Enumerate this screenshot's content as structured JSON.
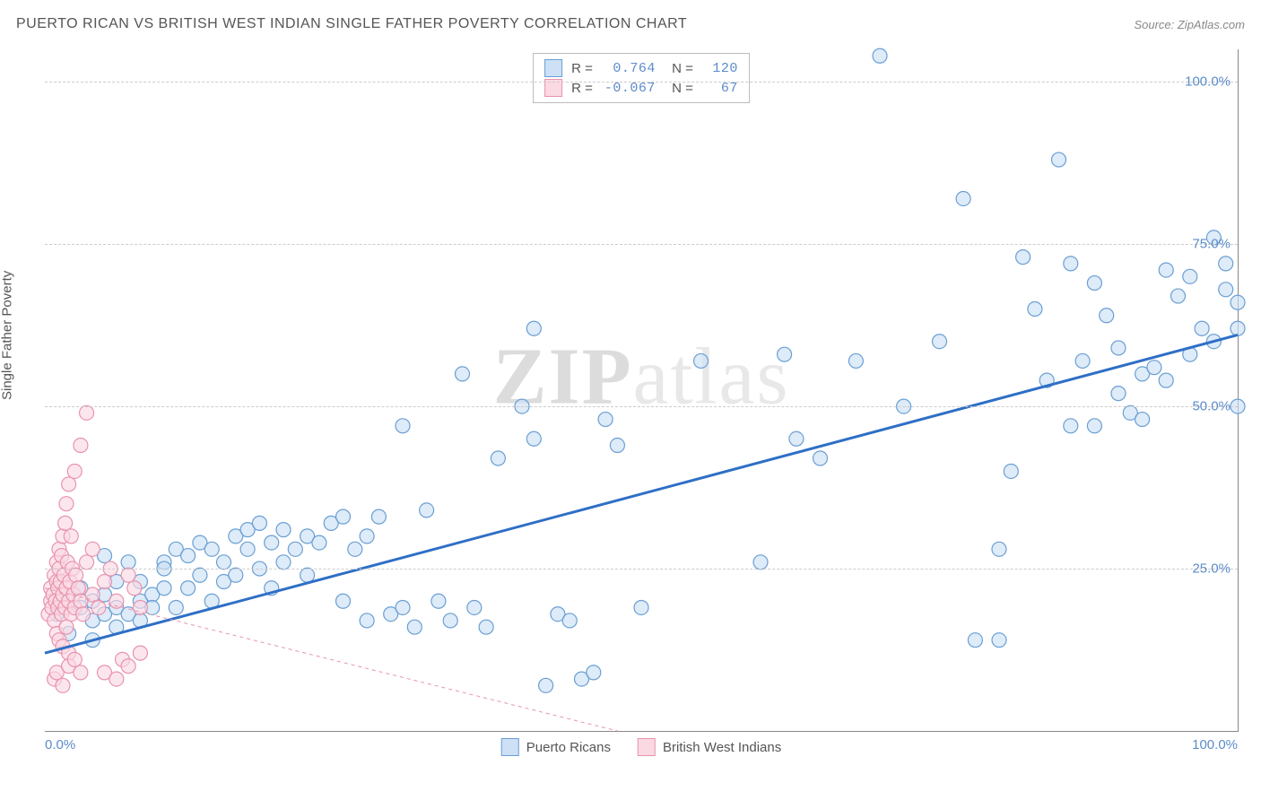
{
  "header": {
    "title": "PUERTO RICAN VS BRITISH WEST INDIAN SINGLE FATHER POVERTY CORRELATION CHART",
    "source_prefix": "Source: ",
    "source": "ZipAtlas.com"
  },
  "watermark": {
    "zip": "ZIP",
    "atlas": "atlas"
  },
  "chart": {
    "type": "scatter",
    "ylabel": "Single Father Poverty",
    "xlim": [
      0,
      100
    ],
    "ylim": [
      0,
      105
    ],
    "xtick_labels": {
      "0": "0.0%",
      "100": "100.0%"
    },
    "ytick_grid": [
      25,
      50,
      75,
      100
    ],
    "ytick_labels": {
      "25": "25.0%",
      "50": "50.0%",
      "75": "75.0%",
      "100": "100.0%"
    },
    "background_color": "#ffffff",
    "grid_color": "#cccccc",
    "axis_color": "#888888",
    "label_color": "#5b8bc9",
    "marker_radius": 8,
    "marker_stroke_width": 1.2,
    "series": [
      {
        "name": "Puerto Ricans",
        "fill": "#cde0f5",
        "stroke": "#6a9fd4",
        "fill_opacity": 0.65,
        "r_label": "R =",
        "r_value": "0.764",
        "n_label": "N =",
        "n_value": "120",
        "trend": {
          "x1": 0,
          "y1": 12,
          "x2": 100,
          "y2": 61,
          "stroke": "#2e6fc6",
          "width": 3,
          "dash": "none"
        },
        "points": [
          [
            1,
            18
          ],
          [
            2,
            20
          ],
          [
            2,
            15
          ],
          [
            3,
            19
          ],
          [
            3,
            22
          ],
          [
            4,
            17
          ],
          [
            4,
            20
          ],
          [
            4,
            14
          ],
          [
            5,
            18
          ],
          [
            5,
            21
          ],
          [
            5,
            27
          ],
          [
            6,
            16
          ],
          [
            6,
            19
          ],
          [
            6,
            23
          ],
          [
            7,
            18
          ],
          [
            7,
            26
          ],
          [
            8,
            20
          ],
          [
            8,
            17
          ],
          [
            8,
            23
          ],
          [
            9,
            21
          ],
          [
            9,
            19
          ],
          [
            10,
            22
          ],
          [
            10,
            26
          ],
          [
            10,
            25
          ],
          [
            11,
            19
          ],
          [
            11,
            28
          ],
          [
            12,
            22
          ],
          [
            12,
            27
          ],
          [
            13,
            24
          ],
          [
            13,
            29
          ],
          [
            14,
            20
          ],
          [
            14,
            28
          ],
          [
            15,
            23
          ],
          [
            15,
            26
          ],
          [
            16,
            30
          ],
          [
            16,
            24
          ],
          [
            17,
            28
          ],
          [
            17,
            31
          ],
          [
            18,
            25
          ],
          [
            18,
            32
          ],
          [
            19,
            22
          ],
          [
            19,
            29
          ],
          [
            20,
            26
          ],
          [
            20,
            31
          ],
          [
            21,
            28
          ],
          [
            22,
            24
          ],
          [
            22,
            30
          ],
          [
            23,
            29
          ],
          [
            24,
            32
          ],
          [
            25,
            20
          ],
          [
            25,
            33
          ],
          [
            26,
            28
          ],
          [
            27,
            17
          ],
          [
            27,
            30
          ],
          [
            28,
            33
          ],
          [
            29,
            18
          ],
          [
            30,
            19
          ],
          [
            30,
            47
          ],
          [
            31,
            16
          ],
          [
            32,
            34
          ],
          [
            33,
            20
          ],
          [
            34,
            17
          ],
          [
            35,
            55
          ],
          [
            36,
            19
          ],
          [
            37,
            16
          ],
          [
            38,
            42
          ],
          [
            40,
            50
          ],
          [
            41,
            45
          ],
          [
            41,
            62
          ],
          [
            42,
            7
          ],
          [
            43,
            18
          ],
          [
            44,
            17
          ],
          [
            45,
            8
          ],
          [
            46,
            9
          ],
          [
            47,
            48
          ],
          [
            48,
            44
          ],
          [
            50,
            19
          ],
          [
            55,
            57
          ],
          [
            60,
            26
          ],
          [
            62,
            58
          ],
          [
            65,
            42
          ],
          [
            68,
            57
          ],
          [
            70,
            104
          ],
          [
            72,
            50
          ],
          [
            75,
            60
          ],
          [
            77,
            82
          ],
          [
            78,
            14
          ],
          [
            80,
            28
          ],
          [
            81,
            40
          ],
          [
            82,
            73
          ],
          [
            83,
            65
          ],
          [
            84,
            54
          ],
          [
            85,
            88
          ],
          [
            86,
            47
          ],
          [
            86,
            72
          ],
          [
            87,
            57
          ],
          [
            88,
            47
          ],
          [
            88,
            69
          ],
          [
            89,
            64
          ],
          [
            90,
            52
          ],
          [
            90,
            59
          ],
          [
            91,
            49
          ],
          [
            92,
            48
          ],
          [
            92,
            55
          ],
          [
            93,
            56
          ],
          [
            94,
            54
          ],
          [
            94,
            71
          ],
          [
            95,
            67
          ],
          [
            96,
            58
          ],
          [
            96,
            70
          ],
          [
            97,
            62
          ],
          [
            98,
            76
          ],
          [
            98,
            60
          ],
          [
            99,
            68
          ],
          [
            99,
            72
          ],
          [
            100,
            66
          ],
          [
            100,
            62
          ],
          [
            100,
            50
          ],
          [
            80,
            14
          ],
          [
            63,
            45
          ]
        ]
      },
      {
        "name": "British West Indians",
        "fill": "#fbd9e3",
        "stroke": "#e893ad",
        "fill_opacity": 0.65,
        "r_label": "R =",
        "r_value": "-0.067",
        "n_label": "N =",
        "n_value": "67",
        "trend": {
          "x1": 0,
          "y1": 22,
          "x2": 48,
          "y2": 0,
          "stroke": "#e893ad",
          "width": 1,
          "dash": "4,4"
        },
        "points": [
          [
            0.3,
            18
          ],
          [
            0.5,
            20
          ],
          [
            0.5,
            22
          ],
          [
            0.6,
            19
          ],
          [
            0.7,
            21
          ],
          [
            0.8,
            24
          ],
          [
            0.8,
            17
          ],
          [
            0.9,
            20
          ],
          [
            1.0,
            23
          ],
          [
            1.0,
            26
          ],
          [
            1.1,
            19
          ],
          [
            1.1,
            22
          ],
          [
            1.2,
            25
          ],
          [
            1.2,
            28
          ],
          [
            1.3,
            20
          ],
          [
            1.3,
            23
          ],
          [
            1.4,
            18
          ],
          [
            1.4,
            27
          ],
          [
            1.5,
            21
          ],
          [
            1.5,
            30
          ],
          [
            1.6,
            24
          ],
          [
            1.7,
            19
          ],
          [
            1.7,
            32
          ],
          [
            1.8,
            22
          ],
          [
            1.8,
            35
          ],
          [
            1.9,
            26
          ],
          [
            2.0,
            20
          ],
          [
            2.0,
            38
          ],
          [
            2.1,
            23
          ],
          [
            2.2,
            18
          ],
          [
            2.2,
            30
          ],
          [
            2.3,
            25
          ],
          [
            2.4,
            21
          ],
          [
            2.5,
            40
          ],
          [
            2.5,
            19
          ],
          [
            2.6,
            24
          ],
          [
            2.8,
            22
          ],
          [
            3.0,
            20
          ],
          [
            3.0,
            44
          ],
          [
            3.2,
            18
          ],
          [
            3.5,
            26
          ],
          [
            3.5,
            49
          ],
          [
            4.0,
            21
          ],
          [
            4.0,
            28
          ],
          [
            4.5,
            19
          ],
          [
            5.0,
            23
          ],
          [
            5.0,
            9
          ],
          [
            5.5,
            25
          ],
          [
            6.0,
            20
          ],
          [
            6.0,
            8
          ],
          [
            6.5,
            11
          ],
          [
            7.0,
            24
          ],
          [
            7.0,
            10
          ],
          [
            7.5,
            22
          ],
          [
            8.0,
            19
          ],
          [
            8.0,
            12
          ],
          [
            1.0,
            15
          ],
          [
            1.2,
            14
          ],
          [
            1.5,
            13
          ],
          [
            2.0,
            12
          ],
          [
            0.8,
            8
          ],
          [
            1.0,
            9
          ],
          [
            1.5,
            7
          ],
          [
            2.0,
            10
          ],
          [
            2.5,
            11
          ],
          [
            3.0,
            9
          ],
          [
            1.8,
            16
          ]
        ]
      }
    ]
  },
  "legend_bottom": {
    "items": [
      {
        "label": "Puerto Ricans",
        "fill": "#cde0f5",
        "stroke": "#6a9fd4"
      },
      {
        "label": "British West Indians",
        "fill": "#fbd9e3",
        "stroke": "#e893ad"
      }
    ]
  }
}
